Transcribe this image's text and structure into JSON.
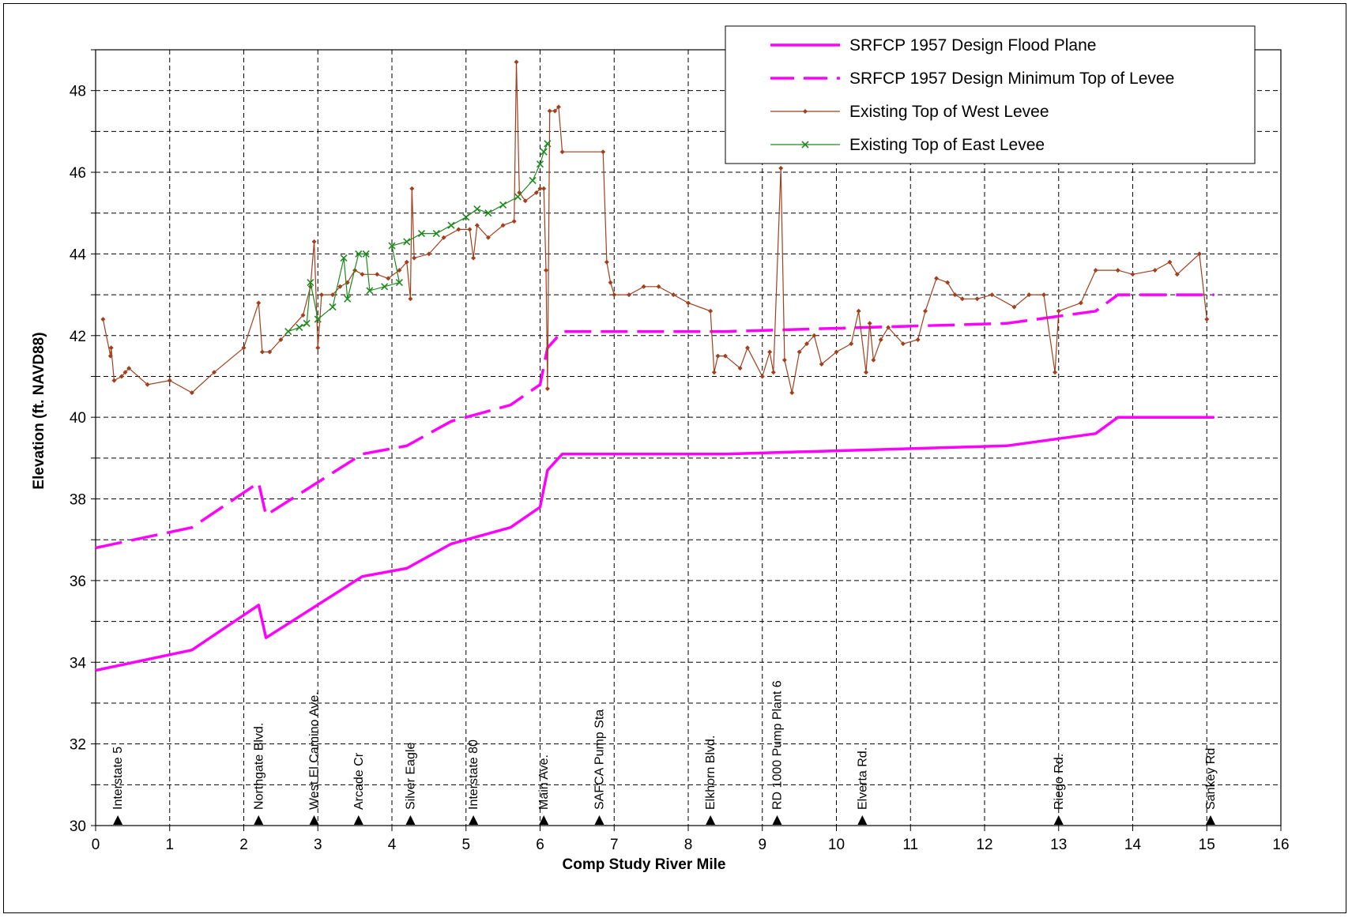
{
  "chart_data": {
    "type": "line",
    "xlabel": "Comp Study River Mile",
    "ylabel": "Elevation (ft. NAVD88)",
    "xlim": [
      0,
      16
    ],
    "ylim": [
      30,
      49
    ],
    "x_ticks": [
      0,
      1,
      2,
      3,
      4,
      5,
      6,
      7,
      8,
      9,
      10,
      11,
      12,
      13,
      14,
      15,
      16
    ],
    "y_ticks": [
      30,
      32,
      34,
      36,
      38,
      40,
      42,
      44,
      46,
      48
    ],
    "grid": true,
    "legend_position": "top-right",
    "colors": {
      "magenta": "#ff00ff",
      "brown": "#a0401e",
      "green": "#1f8a1f"
    },
    "series": [
      {
        "name": "SRFCP 1957 Design Flood Plane",
        "style": "solid",
        "color": "#ff00ff",
        "points": [
          [
            0,
            33.8
          ],
          [
            1.3,
            34.3
          ],
          [
            2.2,
            35.4
          ],
          [
            2.3,
            34.6
          ],
          [
            3.6,
            36.1
          ],
          [
            4.2,
            36.3
          ],
          [
            4.8,
            36.9
          ],
          [
            5.6,
            37.3
          ],
          [
            6.0,
            37.8
          ],
          [
            6.1,
            38.7
          ],
          [
            6.3,
            39.1
          ],
          [
            8.5,
            39.1
          ],
          [
            12.3,
            39.3
          ],
          [
            13.5,
            39.6
          ],
          [
            13.8,
            40.0
          ],
          [
            15.1,
            40.0
          ]
        ]
      },
      {
        "name": "SRFCP 1957 Design Minimum Top of Levee",
        "style": "dashed",
        "color": "#ff00ff",
        "points": [
          [
            0,
            36.8
          ],
          [
            1.3,
            37.3
          ],
          [
            2.2,
            38.4
          ],
          [
            2.3,
            37.6
          ],
          [
            3.6,
            39.1
          ],
          [
            4.2,
            39.3
          ],
          [
            4.8,
            39.9
          ],
          [
            5.6,
            40.3
          ],
          [
            6.0,
            40.8
          ],
          [
            6.1,
            41.7
          ],
          [
            6.3,
            42.1
          ],
          [
            8.5,
            42.1
          ],
          [
            12.3,
            42.3
          ],
          [
            13.5,
            42.6
          ],
          [
            13.8,
            43.0
          ],
          [
            15.1,
            43.0
          ]
        ]
      },
      {
        "name": "Existing Top of West Levee",
        "style": "line-diamond",
        "color": "#a0401e",
        "points": [
          [
            0.1,
            42.4
          ],
          [
            0.2,
            41.5
          ],
          [
            0.21,
            41.7
          ],
          [
            0.25,
            40.9
          ],
          [
            0.35,
            41.0
          ],
          [
            0.4,
            41.1
          ],
          [
            0.45,
            41.2
          ],
          [
            0.7,
            40.8
          ],
          [
            1.0,
            40.9
          ],
          [
            1.3,
            40.6
          ],
          [
            1.6,
            41.1
          ],
          [
            2.0,
            41.7
          ],
          [
            2.2,
            42.8
          ],
          [
            2.25,
            41.6
          ],
          [
            2.35,
            41.6
          ],
          [
            2.5,
            41.9
          ],
          [
            2.8,
            42.5
          ],
          [
            2.9,
            43.2
          ],
          [
            2.95,
            44.3
          ],
          [
            3.0,
            41.7
          ],
          [
            3.05,
            43.0
          ],
          [
            3.2,
            43.0
          ],
          [
            3.3,
            43.2
          ],
          [
            3.4,
            43.3
          ],
          [
            3.5,
            43.6
          ],
          [
            3.6,
            43.5
          ],
          [
            3.8,
            43.5
          ],
          [
            3.95,
            43.4
          ],
          [
            4.1,
            43.6
          ],
          [
            4.2,
            43.8
          ],
          [
            4.25,
            42.9
          ],
          [
            4.27,
            45.6
          ],
          [
            4.3,
            43.9
          ],
          [
            4.5,
            44.0
          ],
          [
            4.7,
            44.4
          ],
          [
            4.9,
            44.6
          ],
          [
            5.05,
            44.6
          ],
          [
            5.1,
            43.9
          ],
          [
            5.15,
            44.7
          ],
          [
            5.3,
            44.4
          ],
          [
            5.5,
            44.7
          ],
          [
            5.65,
            44.8
          ],
          [
            5.68,
            48.7
          ],
          [
            5.72,
            45.5
          ],
          [
            5.8,
            45.3
          ],
          [
            5.95,
            45.5
          ],
          [
            6.0,
            45.6
          ],
          [
            6.05,
            45.6
          ],
          [
            6.08,
            43.6
          ],
          [
            6.1,
            40.7
          ],
          [
            6.13,
            47.5
          ],
          [
            6.2,
            47.5
          ],
          [
            6.25,
            47.6
          ],
          [
            6.3,
            46.5
          ],
          [
            6.85,
            46.5
          ],
          [
            6.9,
            43.8
          ],
          [
            6.95,
            43.3
          ],
          [
            7.0,
            43.0
          ],
          [
            7.2,
            43.0
          ],
          [
            7.4,
            43.2
          ],
          [
            7.6,
            43.2
          ],
          [
            7.8,
            43.0
          ],
          [
            8.0,
            42.8
          ],
          [
            8.3,
            42.6
          ],
          [
            8.35,
            41.1
          ],
          [
            8.4,
            41.5
          ],
          [
            8.5,
            41.5
          ],
          [
            8.7,
            41.2
          ],
          [
            8.8,
            41.7
          ],
          [
            9.0,
            41.0
          ],
          [
            9.1,
            41.6
          ],
          [
            9.15,
            41.1
          ],
          [
            9.25,
            46.1
          ],
          [
            9.3,
            41.4
          ],
          [
            9.4,
            40.6
          ],
          [
            9.5,
            41.6
          ],
          [
            9.6,
            41.8
          ],
          [
            9.7,
            42.0
          ],
          [
            9.8,
            41.3
          ],
          [
            10.0,
            41.6
          ],
          [
            10.2,
            41.8
          ],
          [
            10.3,
            42.6
          ],
          [
            10.4,
            41.1
          ],
          [
            10.45,
            42.3
          ],
          [
            10.5,
            41.4
          ],
          [
            10.6,
            41.9
          ],
          [
            10.7,
            42.2
          ],
          [
            10.9,
            41.8
          ],
          [
            11.1,
            41.9
          ],
          [
            11.2,
            42.6
          ],
          [
            11.35,
            43.4
          ],
          [
            11.5,
            43.3
          ],
          [
            11.6,
            43.0
          ],
          [
            11.7,
            42.9
          ],
          [
            11.9,
            42.9
          ],
          [
            12.1,
            43.0
          ],
          [
            12.4,
            42.7
          ],
          [
            12.6,
            43.0
          ],
          [
            12.8,
            43.0
          ],
          [
            12.95,
            41.1
          ],
          [
            13.0,
            42.6
          ],
          [
            13.3,
            42.8
          ],
          [
            13.5,
            43.6
          ],
          [
            13.8,
            43.6
          ],
          [
            14.0,
            43.5
          ],
          [
            14.3,
            43.6
          ],
          [
            14.5,
            43.8
          ],
          [
            14.6,
            43.5
          ],
          [
            14.9,
            44.0
          ],
          [
            15.0,
            42.4
          ]
        ]
      },
      {
        "name": "Existing Top of East Levee",
        "style": "line-x",
        "color": "#1f8a1f",
        "points": [
          [
            2.6,
            42.1
          ],
          [
            2.75,
            42.2
          ],
          [
            2.85,
            42.3
          ],
          [
            2.9,
            43.3
          ],
          [
            3.0,
            42.4
          ],
          [
            3.2,
            42.7
          ],
          [
            3.35,
            43.9
          ],
          [
            3.4,
            42.9
          ],
          [
            3.55,
            44.0
          ],
          [
            3.65,
            44.0
          ],
          [
            3.7,
            43.1
          ],
          [
            3.9,
            43.2
          ],
          [
            4.1,
            43.3
          ],
          [
            4.0,
            44.2
          ],
          [
            4.2,
            44.3
          ],
          [
            4.4,
            44.5
          ],
          [
            4.6,
            44.5
          ],
          [
            4.8,
            44.7
          ],
          [
            5.0,
            44.9
          ],
          [
            5.15,
            45.1
          ],
          [
            5.3,
            45.0
          ],
          [
            5.5,
            45.2
          ],
          [
            5.7,
            45.4
          ],
          [
            5.9,
            45.8
          ],
          [
            6.0,
            46.2
          ],
          [
            6.05,
            46.5
          ],
          [
            6.1,
            46.7
          ]
        ]
      }
    ]
  },
  "landmarks": [
    {
      "mile": 0.3,
      "label": "Interstate 5"
    },
    {
      "mile": 2.2,
      "label": "Northgate Blvd."
    },
    {
      "mile": 2.95,
      "label": "West El Camino Ave."
    },
    {
      "mile": 3.55,
      "label": "Arcade Cr"
    },
    {
      "mile": 4.25,
      "label": "Silver Eagle"
    },
    {
      "mile": 5.1,
      "label": "Interstate 80"
    },
    {
      "mile": 6.05,
      "label": "Main Ave."
    },
    {
      "mile": 6.8,
      "label": "SAFCA Pump Sta"
    },
    {
      "mile": 8.3,
      "label": "Elkhorn Blvd."
    },
    {
      "mile": 9.2,
      "label": "RD 1000 Pump Plant 6"
    },
    {
      "mile": 10.35,
      "label": "Elverta Rd."
    },
    {
      "mile": 13.0,
      "label": "Riego Rd."
    },
    {
      "mile": 15.05,
      "label": "Sankey Rd"
    }
  ],
  "legend": [
    {
      "label": "SRFCP 1957 Design Flood Plane"
    },
    {
      "label": "SRFCP 1957 Design Minimum Top of Levee"
    },
    {
      "label": "Existing Top of West Levee"
    },
    {
      "label": "Existing Top of East Levee"
    }
  ]
}
